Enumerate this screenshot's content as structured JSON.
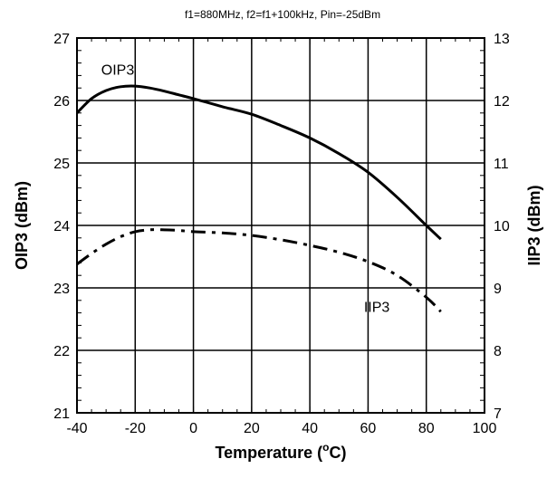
{
  "chart_data": {
    "type": "line",
    "title": "f1=880MHz, f2=f1+100kHz, Pin=-25dBm",
    "xlabel": "Temperature (°C)",
    "xlabel_parts": {
      "main": "Temperature (",
      "sup": "o",
      "tail": "C)"
    },
    "ylabel_left": "OIP3 (dBm)",
    "ylabel_right": "IIP3 (dBm)",
    "xlim": [
      -40,
      100
    ],
    "ylim_left": [
      21,
      27
    ],
    "ylim_right": [
      7,
      13
    ],
    "x_ticks": [
      -40,
      -20,
      0,
      20,
      40,
      60,
      80,
      100
    ],
    "y_ticks_left": [
      21,
      22,
      23,
      24,
      25,
      26,
      27
    ],
    "y_ticks_right": [
      7,
      8,
      9,
      10,
      11,
      12,
      13
    ],
    "grid": true,
    "series": [
      {
        "name": "OIP3",
        "axis": "left",
        "style": "solid",
        "x": [
          -40,
          -35,
          -30,
          -25,
          -20,
          -15,
          -10,
          -5,
          0,
          10,
          20,
          30,
          40,
          50,
          60,
          70,
          80,
          85
        ],
        "y": [
          25.8,
          26.03,
          26.16,
          26.22,
          26.23,
          26.2,
          26.15,
          26.09,
          26.03,
          25.9,
          25.78,
          25.6,
          25.4,
          25.15,
          24.85,
          24.45,
          24.0,
          23.78
        ]
      },
      {
        "name": "IIP3",
        "axis": "right",
        "style": "dashdot",
        "x": [
          -40,
          -35,
          -30,
          -25,
          -20,
          -15,
          -10,
          -5,
          0,
          10,
          20,
          30,
          40,
          50,
          60,
          70,
          80,
          85
        ],
        "y": [
          9.38,
          9.55,
          9.7,
          9.82,
          9.9,
          9.93,
          9.93,
          9.92,
          9.9,
          9.88,
          9.84,
          9.77,
          9.68,
          9.57,
          9.42,
          9.2,
          8.85,
          8.62
        ]
      }
    ],
    "annotations": [
      {
        "text": "OIP3",
        "x": -26,
        "y": 26.5,
        "axis": "left"
      },
      {
        "text": "IIP3",
        "x": 63,
        "y": 8.7,
        "axis": "right"
      }
    ]
  }
}
